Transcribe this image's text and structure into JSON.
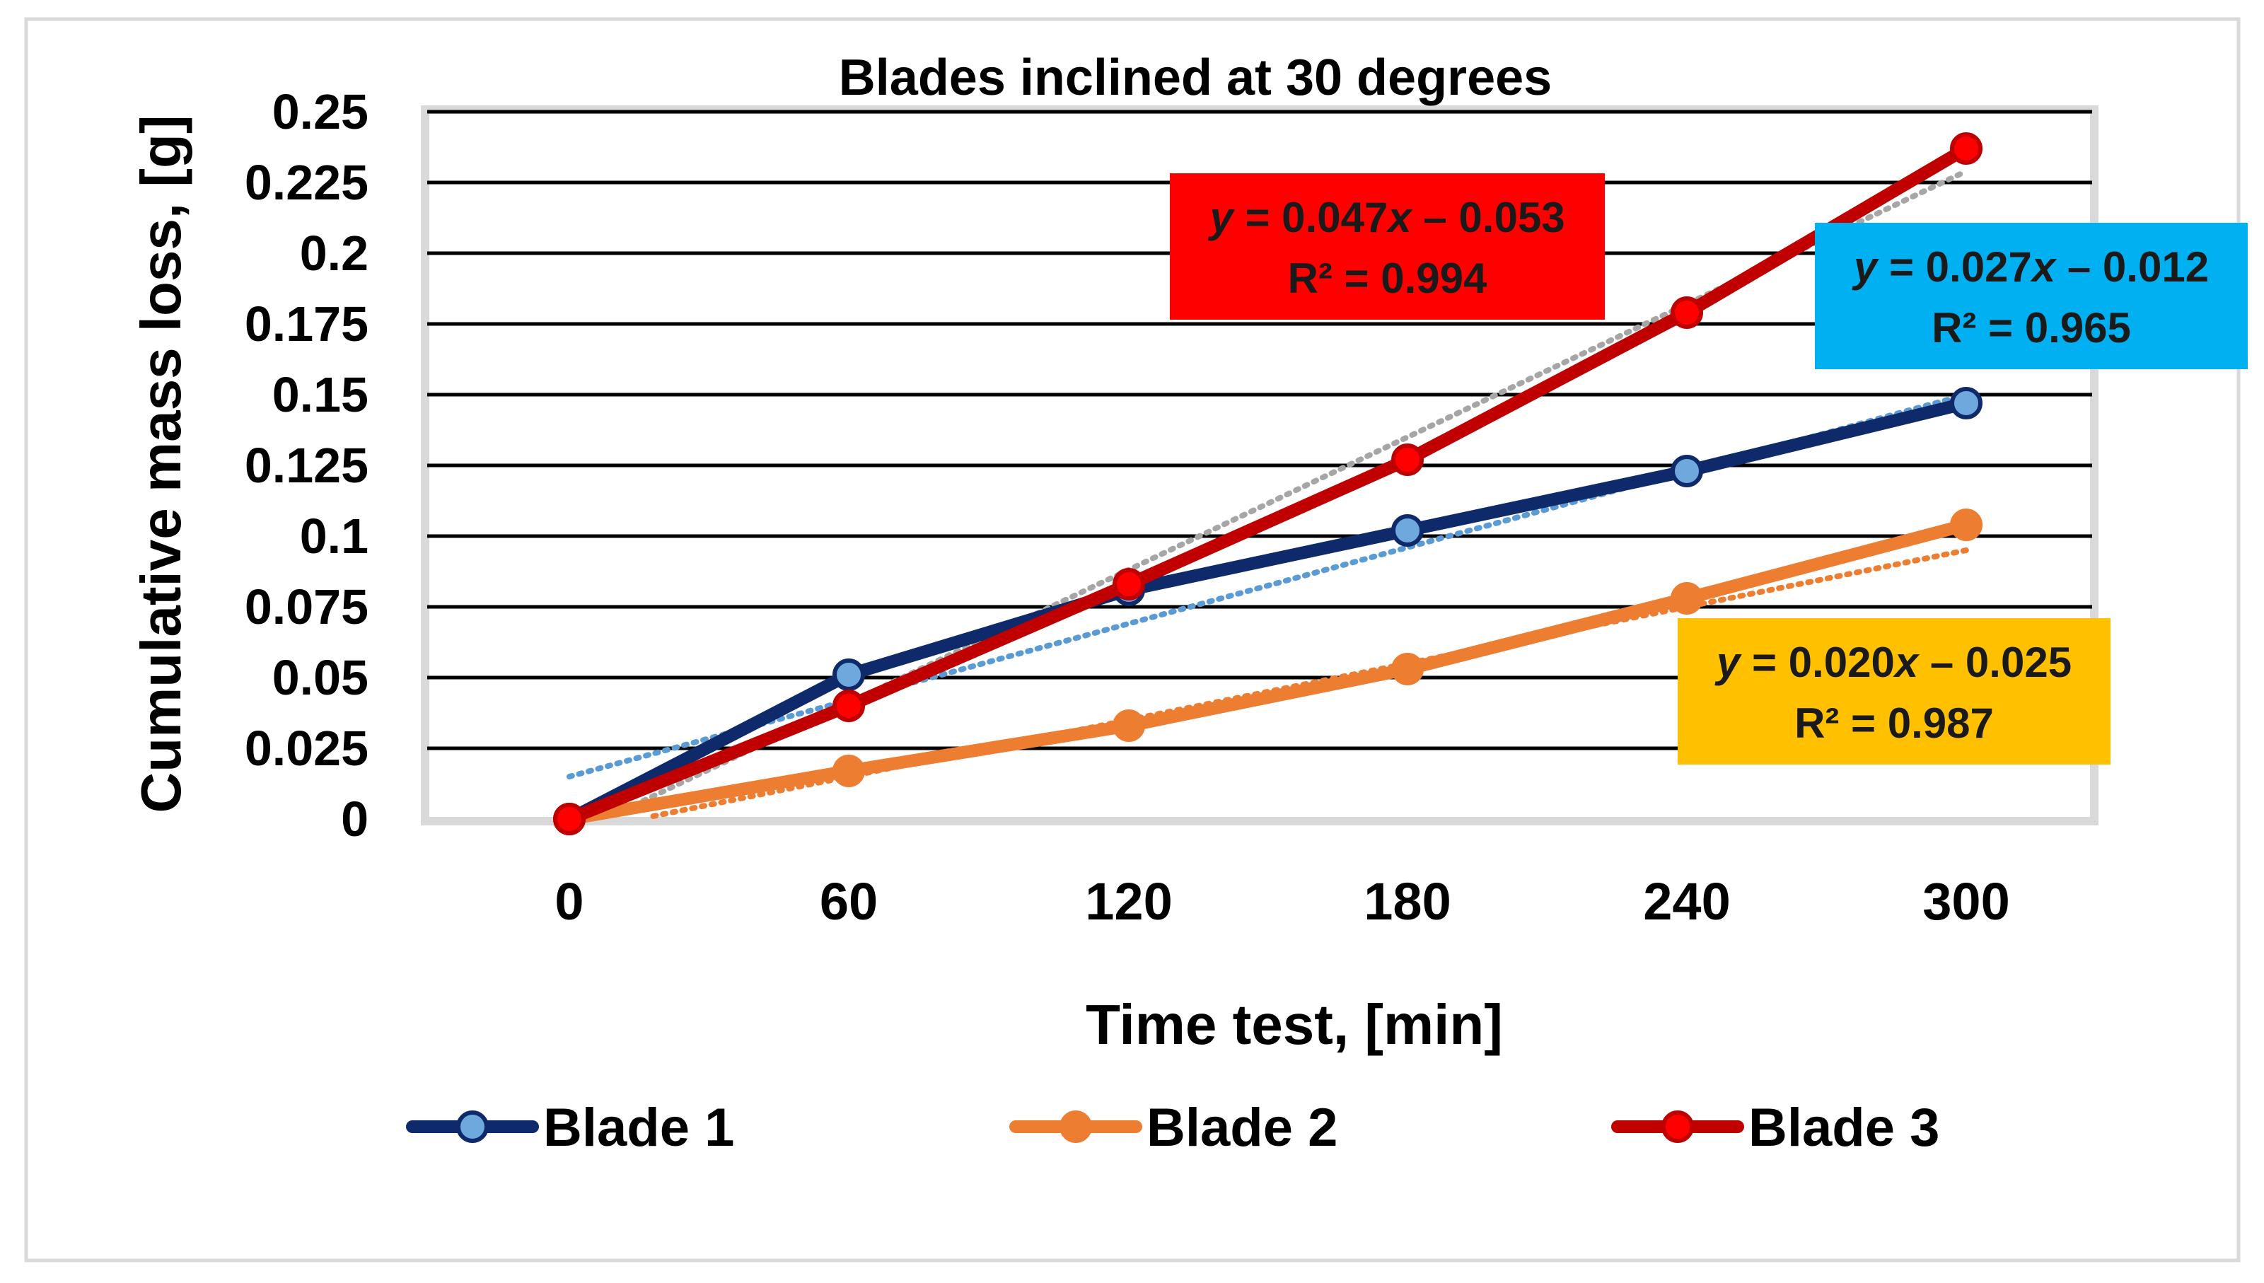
{
  "chart_data": {
    "type": "line",
    "title": "Blades inclined at 30 degrees",
    "xlabel": "Time test, [min]",
    "ylabel": "Cumulative mass loss, [g]",
    "x": [
      0,
      60,
      120,
      180,
      240,
      300
    ],
    "x_ticks": [
      "0",
      "60",
      "120",
      "180",
      "240",
      "300"
    ],
    "y_ticks": [
      "0",
      "0.025",
      "0.05",
      "0.075",
      "0.1",
      "0.125",
      "0.15",
      "0.175",
      "0.2",
      "0.225",
      "0.25"
    ],
    "ylim": [
      0,
      0.25
    ],
    "grid": true,
    "legend_position": "bottom",
    "series": [
      {
        "name": "Blade 1",
        "values": [
          0.0,
          0.051,
          0.081,
          0.102,
          0.123,
          0.147
        ],
        "line_color": "#0f2a6b",
        "marker_fill": "#6fa8dc",
        "trend_color": "#5b9bd5",
        "trend": {
          "slope": 0.027,
          "intercept": -0.012
        },
        "equation": {
          "lead": "y",
          "mid": " = 0.027",
          "var": "x",
          "tail": " – 0.012",
          "r2": "R² = 0.965",
          "bg": "#00b0f0",
          "text_color": "#1a1a1a"
        }
      },
      {
        "name": "Blade 2",
        "values": [
          0.0,
          0.017,
          0.033,
          0.053,
          0.078,
          0.104
        ],
        "line_color": "#ed7d31",
        "marker_fill": "#ed7d31",
        "trend_color": "#ed7d31",
        "trend": {
          "slope": 0.02,
          "intercept": -0.025
        },
        "equation": {
          "lead": "y",
          "mid": " = 0.020",
          "var": "x",
          "tail": " – 0.025",
          "r2": "R² = 0.987",
          "bg": "#ffc000",
          "text_color": "#1a1a1a"
        }
      },
      {
        "name": "Blade 3",
        "values": [
          0.0,
          0.04,
          0.083,
          0.127,
          0.179,
          0.237
        ],
        "line_color": "#c00000",
        "marker_fill": "#ff0000",
        "trend_color": "#a6a6a6",
        "trend": {
          "slope": 0.047,
          "intercept": -0.053
        },
        "equation": {
          "lead": "y",
          "mid": " = 0.047",
          "var": "x",
          "tail": " – 0.053",
          "r2": "R² = 0.994",
          "bg": "#ff0000",
          "text_color": "#1a1a1a"
        }
      }
    ]
  }
}
